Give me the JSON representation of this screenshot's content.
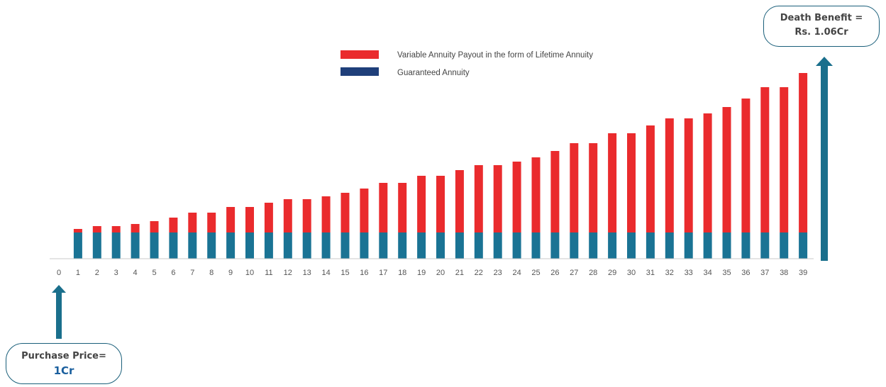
{
  "chart_data": {
    "type": "bar",
    "stacked": true,
    "categories": [
      "0",
      "1",
      "2",
      "3",
      "4",
      "5",
      "6",
      "7",
      "8",
      "9",
      "10",
      "11",
      "12",
      "13",
      "14",
      "15",
      "16",
      "17",
      "18",
      "19",
      "20",
      "21",
      "22",
      "23",
      "24",
      "25",
      "26",
      "27",
      "28",
      "29",
      "30",
      "31",
      "32",
      "33",
      "34",
      "35",
      "36",
      "37",
      "38",
      "39"
    ],
    "series": [
      {
        "name": "Guaranteed Annuity",
        "color": "#1a7394",
        "values": [
          0,
          37,
          37,
          37,
          37,
          37,
          37,
          37,
          37,
          37,
          37,
          37,
          37,
          37,
          37,
          37,
          37,
          37,
          37,
          37,
          37,
          37,
          37,
          37,
          37,
          37,
          37,
          37,
          37,
          37,
          37,
          37,
          37,
          37,
          37,
          37,
          37,
          37,
          37,
          37
        ]
      },
      {
        "name": "Variable Annuity Payout in the form of Lifetime Annuity",
        "color": "#ea2b2d",
        "values": [
          0,
          5,
          9,
          9,
          12,
          16,
          21,
          28,
          28,
          36,
          36,
          42,
          47,
          47,
          51,
          56,
          62,
          70,
          70,
          80,
          80,
          88,
          95,
          95,
          100,
          106,
          115,
          126,
          126,
          140,
          140,
          151,
          161,
          161,
          168,
          177,
          189,
          205,
          205,
          225
        ]
      }
    ],
    "legend_position": "top-center",
    "grid": false,
    "ylim": [
      0,
      270
    ]
  },
  "legend": {
    "variable_label": "Variable Annuity Payout in the form of Lifetime Annuity",
    "guaranteed_label": "Guaranteed Annuity",
    "guaranteed_swatch_color": "#1f3f7a"
  },
  "callouts": {
    "death_benefit": {
      "line1": "Death Benefit =",
      "line2": "Rs. 1.06Cr"
    },
    "purchase_price": {
      "line1": "Purchase Price=",
      "line2": "1Cr",
      "value_color": "#1a5f9e"
    }
  },
  "arrows": {
    "color": "#1a6f8c"
  },
  "axis_color": "#c8c8c8"
}
